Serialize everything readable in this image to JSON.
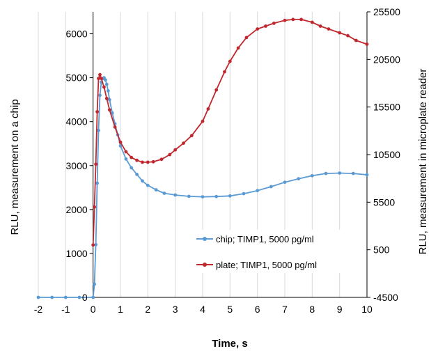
{
  "chart_data": {
    "type": "line",
    "title": "",
    "xlabel": "Time, s",
    "ylabel_left": "RLU, measurement on a chip",
    "ylabel_right": "RLU, measurement in microplate reader",
    "xlim": [
      -2,
      10
    ],
    "xticks": [
      "-2",
      "-1",
      "0",
      "1",
      "2",
      "3",
      "4",
      "5",
      "6",
      "7",
      "8",
      "9",
      "10"
    ],
    "ylim_left": [
      0,
      6500
    ],
    "yticks_left": [
      "0",
      "1000",
      "2000",
      "3000",
      "4000",
      "5000",
      "6000"
    ],
    "ylim_right": [
      -4500,
      25500
    ],
    "yticks_right": [
      "-4500",
      "500",
      "5500",
      "10500",
      "15500",
      "20500",
      "25500"
    ],
    "grid": "vertical",
    "legend_position": "center-right",
    "series": [
      {
        "name": "chip; TIMP1, 5000 pg/ml",
        "axis": "left",
        "color": "#5b9bd5",
        "x": [
          -2,
          -1.5,
          -1,
          -0.5,
          0,
          0.05,
          0.1,
          0.15,
          0.2,
          0.25,
          0.3,
          0.35,
          0.4,
          0.45,
          0.5,
          0.55,
          0.6,
          0.7,
          0.8,
          0.9,
          1.0,
          1.2,
          1.4,
          1.6,
          1.8,
          2.0,
          2.3,
          2.6,
          3.0,
          3.5,
          4.0,
          4.5,
          5.0,
          5.5,
          6.0,
          6.5,
          7.0,
          7.5,
          8.0,
          8.5,
          9.0,
          9.5,
          10.0
        ],
        "y": [
          0,
          0,
          0,
          0,
          0,
          300,
          1200,
          2600,
          3800,
          4600,
          4900,
          4980,
          5000,
          4950,
          4850,
          4700,
          4500,
          4200,
          3950,
          3700,
          3450,
          3150,
          2950,
          2800,
          2650,
          2550,
          2450,
          2370,
          2330,
          2300,
          2290,
          2295,
          2310,
          2360,
          2430,
          2520,
          2620,
          2700,
          2770,
          2820,
          2830,
          2820,
          2790
        ]
      },
      {
        "name": "plate; TIMP1, 5000 pg/ml",
        "axis": "right",
        "color": "#c0282d",
        "x": [
          0,
          0.05,
          0.1,
          0.15,
          0.2,
          0.25,
          0.3,
          0.4,
          0.5,
          0.6,
          0.8,
          1.0,
          1.2,
          1.4,
          1.6,
          1.8,
          2.0,
          2.2,
          2.5,
          2.8,
          3.0,
          3.3,
          3.6,
          4.0,
          4.2,
          4.5,
          4.8,
          5.0,
          5.3,
          5.6,
          6.0,
          6.3,
          6.6,
          7.0,
          7.3,
          7.6,
          8.0,
          8.3,
          8.6,
          9.0,
          9.3,
          9.6,
          10.0
        ],
        "y": [
          1000,
          5000,
          9500,
          15000,
          18500,
          18900,
          18500,
          17600,
          16400,
          15200,
          13400,
          11800,
          10800,
          10200,
          9900,
          9700,
          9700,
          9750,
          10000,
          10500,
          11000,
          11700,
          12500,
          14000,
          15300,
          17300,
          19200,
          20300,
          21700,
          22800,
          23700,
          24000,
          24300,
          24600,
          24700,
          24700,
          24400,
          24000,
          23700,
          23300,
          23000,
          22500,
          22100
        ]
      }
    ]
  }
}
